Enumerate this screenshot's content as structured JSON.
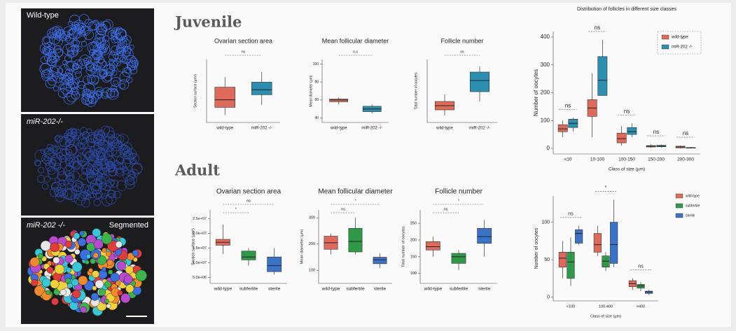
{
  "figure": {
    "panels": [
      "Wild-type",
      "miR-202-/-",
      "miR-202 -/-"
    ],
    "segmented": "Segmented",
    "sections": [
      "Juvenile",
      "Adult"
    ]
  },
  "chart_data": [
    {
      "type": "box",
      "title": "Ovarian section area",
      "ylabel": "Section surface (µm²)",
      "categories": [
        "wild-type",
        "miR-202 -/-"
      ],
      "colors": [
        "#e06a5a",
        "#2a8fb0"
      ],
      "ylim": [
        500000,
        3000000
      ],
      "boxes": [
        {
          "low": 800000,
          "q1": 1100000,
          "median": 1400000,
          "q3": 1900000,
          "high": 2300000
        },
        {
          "low": 1200000,
          "q1": 1600000,
          "median": 1800000,
          "q3": 2100000,
          "high": 2500000
        }
      ],
      "annotations": [
        "ns"
      ]
    },
    {
      "type": "box",
      "title": "Mean follicular diameter",
      "ylabel": "Mean diameter (µm)",
      "categories": [
        "wild-type",
        "miR-202 -/-"
      ],
      "colors": [
        "#e06a5a",
        "#2a8fb0"
      ],
      "ylim": [
        35,
        105
      ],
      "yticks": [
        40,
        60,
        80,
        100
      ],
      "boxes": [
        {
          "low": 55,
          "q1": 58,
          "median": 60,
          "q3": 61,
          "high": 63
        },
        {
          "low": 45,
          "q1": 47,
          "median": 50,
          "q3": 53,
          "high": 55
        }
      ],
      "annotations": [
        "n.s"
      ]
    },
    {
      "type": "box",
      "title": "Follicle number",
      "ylabel": "Total number of oocytes",
      "categories": [
        "wild-type",
        "miR-202 -/-"
      ],
      "colors": [
        "#e06a5a",
        "#2a8fb0"
      ],
      "ylim": [
        200,
        650
      ],
      "boxes": [
        {
          "low": 250,
          "q1": 290,
          "median": 320,
          "q3": 350,
          "high": 400
        },
        {
          "low": 350,
          "q1": 420,
          "median": 500,
          "q3": 560,
          "high": 600
        }
      ],
      "annotations": [
        "ns"
      ]
    },
    {
      "type": "box",
      "title": "Ovarian section area",
      "ylabel": "Section surface (µm²)",
      "categories": [
        "wild-type",
        "subfertile",
        "sterile"
      ],
      "colors": [
        "#e06a5a",
        "#2e9a48",
        "#3a74c8"
      ],
      "ylim": [
        3000000,
        28000000
      ],
      "yticks": [
        {
          "value": 5000000,
          "label": "5.0e+06"
        },
        {
          "value": 10000000,
          "label": "1.0e+07"
        },
        {
          "value": 15000000,
          "label": "1.5e+07"
        },
        {
          "value": 20000000,
          "label": "2.0e+07"
        },
        {
          "value": 25000000,
          "label": "2.5e+07"
        }
      ],
      "boxes": [
        {
          "low": 13000000,
          "q1": 16000000,
          "median": 17000000,
          "q3": 18000000,
          "high": 23000000
        },
        {
          "low": 9000000,
          "q1": 11000000,
          "median": 12000000,
          "q3": 14000000,
          "high": 15000000
        },
        {
          "low": 6000000,
          "q1": 7000000,
          "median": 9000000,
          "q3": 12000000,
          "high": 15000000
        }
      ],
      "annotations": [
        "ns",
        "*"
      ]
    },
    {
      "type": "box",
      "title": "Mean follicular diameter",
      "ylabel": "Mean diameter (µm)",
      "categories": [
        "wild-type",
        "subfertile",
        "sterile"
      ],
      "colors": [
        "#e06a5a",
        "#2e9a48",
        "#3a74c8"
      ],
      "ylim": [
        50,
        330
      ],
      "yticks": [
        100,
        200,
        300
      ],
      "boxes": [
        {
          "low": 160,
          "q1": 180,
          "median": 205,
          "q3": 230,
          "high": 240
        },
        {
          "low": 160,
          "q1": 170,
          "median": 210,
          "q3": 260,
          "high": 300
        },
        {
          "low": 110,
          "q1": 125,
          "median": 140,
          "q3": 150,
          "high": 165
        }
      ],
      "annotations": [
        "*",
        "ns"
      ]
    },
    {
      "type": "box",
      "title": "Follicle number",
      "ylabel": "Total number of oocytes",
      "categories": [
        "wild-type",
        "subfertile",
        "sterile"
      ],
      "colors": [
        "#e06a5a",
        "#2e9a48",
        "#3a74c8"
      ],
      "ylim": [
        70,
        290
      ],
      "yticks": [
        100,
        150,
        200,
        250
      ],
      "boxes": [
        {
          "low": 150,
          "q1": 170,
          "median": 180,
          "q3": 195,
          "high": 210
        },
        {
          "low": 110,
          "q1": 130,
          "median": 150,
          "q3": 160,
          "high": 170
        },
        {
          "low": 150,
          "q1": 190,
          "median": 210,
          "q3": 235,
          "high": 260
        }
      ],
      "annotations": [
        "*",
        "ns"
      ]
    },
    {
      "type": "box",
      "title": "Distribution  of follicles in different size classes",
      "ylabel": "Number of oocytes",
      "xlabel": "Class of size (µm)",
      "categories": [
        "<10",
        "10-100",
        "100-150",
        "150-200",
        "200-300"
      ],
      "ylim": [
        -20,
        420
      ],
      "yticks": [
        0,
        100,
        200,
        300,
        400
      ],
      "legend": "upper right",
      "series": [
        {
          "name": "wild-type",
          "color": "#e06a5a",
          "boxes": [
            {
              "low": 40,
              "q1": 60,
              "median": 70,
              "q3": 85,
              "high": 100
            },
            {
              "low": 40,
              "q1": 115,
              "median": 145,
              "q3": 175,
              "high": 270
            },
            {
              "low": 10,
              "q1": 20,
              "median": 35,
              "q3": 55,
              "high": 80
            },
            {
              "low": 2,
              "q1": 5,
              "median": 8,
              "q3": 10,
              "high": 15
            },
            {
              "low": 0,
              "q1": 2,
              "median": 5,
              "q3": 8,
              "high": 10
            }
          ]
        },
        {
          "name": "miR-202 -/-",
          "color": "#2a8fb0",
          "boxes": [
            {
              "low": 60,
              "q1": 75,
              "median": 90,
              "q3": 105,
              "high": 110
            },
            {
              "low": 190,
              "q1": 190,
              "median": 245,
              "q3": 330,
              "high": 390
            },
            {
              "low": 40,
              "q1": 50,
              "median": 60,
              "q3": 75,
              "high": 90
            },
            {
              "low": 3,
              "q1": 6,
              "median": 8,
              "q3": 11,
              "high": 14
            },
            {
              "low": 0,
              "q1": 1,
              "median": 2,
              "q3": 3,
              "high": 5
            }
          ]
        }
      ],
      "annotations": [
        "ns",
        "ns",
        "ns",
        "ns",
        "ns"
      ]
    },
    {
      "type": "box",
      "ylabel": "Number of oocytes",
      "xlabel": "Class of size (µm)",
      "categories": [
        "<100",
        "100-400",
        ">400"
      ],
      "ylim": [
        -5,
        135
      ],
      "yticks": [
        0,
        50,
        100
      ],
      "legend": "right",
      "series": [
        {
          "name": "wild-type",
          "color": "#e06a5a",
          "boxes": [
            {
              "low": 25,
              "q1": 40,
              "median": 52,
              "q3": 60,
              "high": 75
            },
            {
              "low": 55,
              "q1": 60,
              "median": 70,
              "q3": 85,
              "high": 95
            },
            {
              "low": 10,
              "q1": 14,
              "median": 18,
              "q3": 22,
              "high": 25
            }
          ]
        },
        {
          "name": "subfertile",
          "color": "#2e9a48",
          "boxes": [
            {
              "low": 15,
              "q1": 25,
              "median": 47,
              "q3": 60,
              "high": 80
            },
            {
              "low": 35,
              "q1": 40,
              "median": 48,
              "q3": 55,
              "high": 60
            },
            {
              "low": 8,
              "q1": 12,
              "median": 15,
              "q3": 17,
              "high": 20
            }
          ]
        },
        {
          "name": "sterile",
          "color": "#3a74c8",
          "boxes": [
            {
              "low": 70,
              "q1": 72,
              "median": 85,
              "q3": 90,
              "high": 95
            },
            {
              "low": 40,
              "q1": 45,
              "median": 70,
              "q3": 100,
              "high": 130
            },
            {
              "low": 3,
              "q1": 5,
              "median": 7,
              "q3": 8,
              "high": 10
            }
          ]
        }
      ],
      "annotations": [
        "ns",
        "*",
        "ns"
      ]
    }
  ]
}
